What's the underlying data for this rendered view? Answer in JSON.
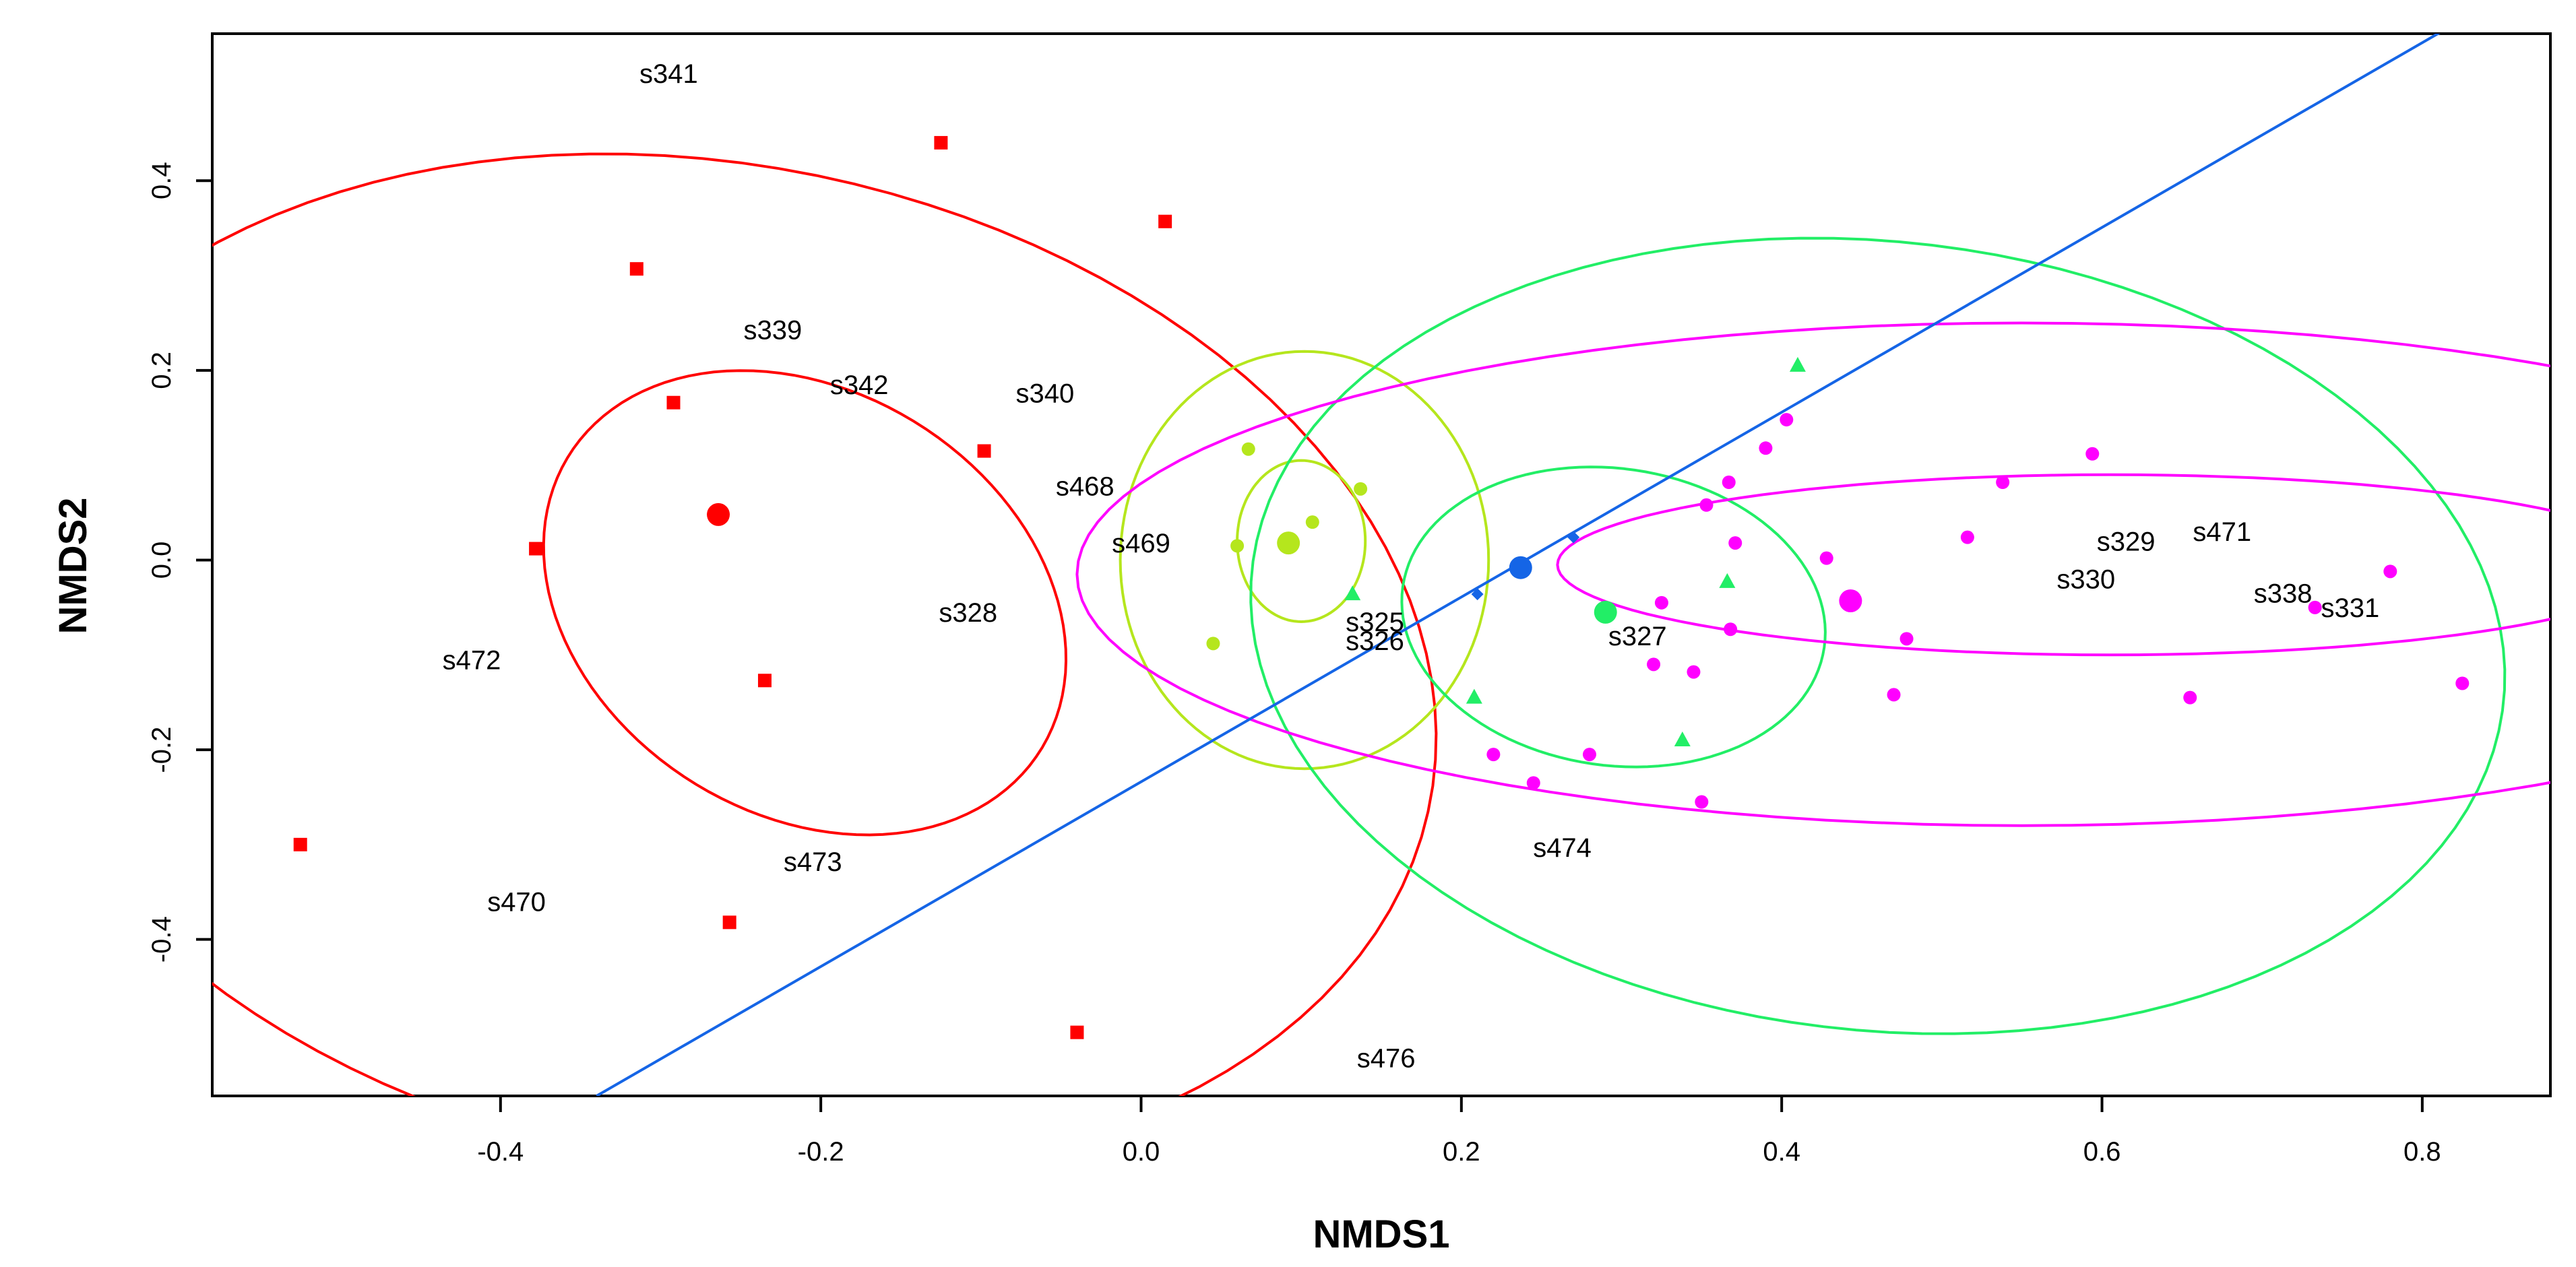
{
  "chart_data": {
    "type": "scatter",
    "title": "",
    "xlabel": "NMDS1",
    "ylabel": "NMDS2",
    "xlim": [
      -0.58,
      0.88
    ],
    "ylim": [
      -0.565,
      0.555
    ],
    "xticks": [
      -0.4,
      -0.2,
      0.0,
      0.2,
      0.4,
      0.6,
      0.8
    ],
    "yticks": [
      -0.4,
      -0.2,
      0.0,
      0.2,
      0.4
    ],
    "xtick_labels": [
      "-0.4",
      "-0.2",
      "0.0",
      "0.2",
      "0.4",
      "0.6",
      "0.8"
    ],
    "ytick_labels": [
      "-0.4",
      "-0.2",
      "0.0",
      "0.2",
      "0.4"
    ],
    "series": [
      {
        "name": "red",
        "color": "#ff0000",
        "marker": "square",
        "points": [
          [
            -0.125,
            0.44
          ],
          [
            0.015,
            0.357
          ],
          [
            -0.315,
            0.307
          ],
          [
            -0.292,
            0.166
          ],
          [
            -0.098,
            0.115
          ],
          [
            -0.378,
            0.012
          ],
          [
            -0.235,
            -0.127
          ],
          [
            -0.525,
            -0.3
          ],
          [
            -0.257,
            -0.382
          ],
          [
            -0.04,
            -0.498
          ]
        ],
        "centroid": [
          -0.264,
          0.048
        ],
        "ellipses": [
          {
            "center": [
              -0.21,
              -0.045
            ],
            "rx": 0.155,
            "ry": 0.25,
            "angle": 15
          },
          {
            "center": [
              -0.27,
              -0.11
            ],
            "rx": 0.44,
            "ry": 0.55,
            "angle": 20
          }
        ]
      },
      {
        "name": "yellow-green",
        "color": "#b5e61d",
        "marker": "circle",
        "points": [
          [
            0.067,
            0.117
          ],
          [
            0.137,
            0.075
          ],
          [
            0.107,
            0.04
          ],
          [
            0.06,
            0.015
          ],
          [
            0.045,
            -0.088
          ]
        ],
        "centroid": [
          0.092,
          0.018
        ],
        "ellipses": [
          {
            "center": [
              0.1,
              0.02
            ],
            "rx": 0.04,
            "ry": 0.085,
            "angle": 0
          },
          {
            "center": [
              0.102,
              0.0
            ],
            "rx": 0.115,
            "ry": 0.22,
            "angle": 0
          }
        ]
      },
      {
        "name": "green",
        "color": "#22ee66",
        "marker": "triangle",
        "points": [
          [
            0.41,
            0.205
          ],
          [
            0.366,
            -0.023
          ],
          [
            0.132,
            -0.036
          ],
          [
            0.208,
            -0.145
          ],
          [
            0.338,
            -0.19
          ]
        ],
        "centroid": [
          0.29,
          -0.055
        ],
        "ellipses": [
          {
            "center": [
              0.295,
              -0.06
            ],
            "rx": 0.13,
            "ry": 0.16,
            "angle": 15
          },
          {
            "center": [
              0.46,
              -0.08
            ],
            "rx": 0.38,
            "ry": 0.43,
            "angle": 28
          }
        ]
      },
      {
        "name": "magenta",
        "color": "#ff00ff",
        "marker": "circle",
        "points": [
          [
            0.403,
            0.148
          ],
          [
            0.39,
            0.118
          ],
          [
            0.594,
            0.112
          ],
          [
            0.367,
            0.082
          ],
          [
            0.538,
            0.082
          ],
          [
            0.353,
            0.058
          ],
          [
            0.516,
            0.024
          ],
          [
            0.371,
            0.018
          ],
          [
            0.428,
            0.002
          ],
          [
            0.325,
            -0.045
          ],
          [
            0.368,
            -0.073
          ],
          [
            0.478,
            -0.083
          ],
          [
            0.32,
            -0.11
          ],
          [
            0.345,
            -0.118
          ],
          [
            0.47,
            -0.142
          ],
          [
            0.655,
            -0.145
          ],
          [
            0.825,
            -0.13
          ],
          [
            0.78,
            -0.012
          ],
          [
            0.733,
            -0.05
          ],
          [
            0.22,
            -0.205
          ],
          [
            0.28,
            -0.205
          ],
          [
            0.245,
            -0.235
          ],
          [
            0.35,
            -0.255
          ]
        ],
        "centroid": [
          0.443,
          -0.043
        ],
        "ellipses": [
          {
            "center": [
              0.605,
              -0.005
            ],
            "rx": 0.345,
            "ry": 0.095,
            "angle": 0
          },
          {
            "center": [
              0.55,
              -0.015
            ],
            "rx": 0.59,
            "ry": 0.265,
            "angle": 0
          }
        ]
      }
    ],
    "fit_line": {
      "color": "#1565e6",
      "from": [
        -0.34,
        -0.565
      ],
      "to": [
        0.82,
        0.565
      ]
    },
    "blue_points": [
      [
        0.237,
        -0.008
      ],
      [
        0.27,
        0.024
      ],
      [
        0.21,
        -0.036
      ]
    ],
    "labels": [
      {
        "text": "s341",
        "x": -0.295,
        "y": 0.513
      },
      {
        "text": "s339",
        "x": -0.23,
        "y": 0.243
      },
      {
        "text": "s342",
        "x": -0.176,
        "y": 0.185
      },
      {
        "text": "s340",
        "x": -0.06,
        "y": 0.176
      },
      {
        "text": "s468",
        "x": -0.035,
        "y": 0.078
      },
      {
        "text": "s469",
        "x": 0.0,
        "y": 0.018
      },
      {
        "text": "s328",
        "x": -0.108,
        "y": -0.055
      },
      {
        "text": "s472",
        "x": -0.418,
        "y": -0.105
      },
      {
        "text": "s470",
        "x": -0.39,
        "y": -0.36
      },
      {
        "text": "s473",
        "x": -0.205,
        "y": -0.318
      },
      {
        "text": "s325",
        "x": 0.146,
        "y": -0.065
      },
      {
        "text": "s326",
        "x": 0.146,
        "y": -0.085
      },
      {
        "text": "s327",
        "x": 0.31,
        "y": -0.08
      },
      {
        "text": "s474",
        "x": 0.263,
        "y": -0.303
      },
      {
        "text": "s476",
        "x": 0.153,
        "y": -0.525
      },
      {
        "text": "s329",
        "x": 0.615,
        "y": 0.02
      },
      {
        "text": "s330",
        "x": 0.59,
        "y": -0.02
      },
      {
        "text": "s471",
        "x": 0.675,
        "y": 0.03
      },
      {
        "text": "s338",
        "x": 0.713,
        "y": -0.035
      },
      {
        "text": "s331",
        "x": 0.755,
        "y": -0.05
      }
    ]
  }
}
